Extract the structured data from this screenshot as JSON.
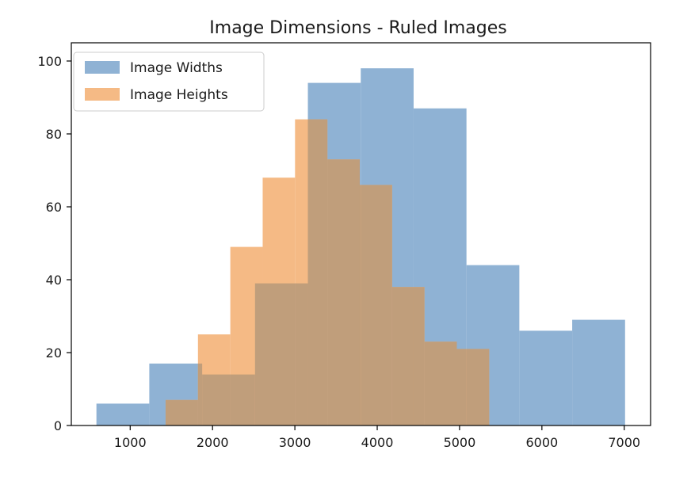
{
  "chart_data": {
    "type": "bar",
    "title": "Image Dimensions - Ruled Images",
    "xlabel": "",
    "ylabel": "",
    "xlim": [
      285,
      7320
    ],
    "ylim": [
      0,
      105
    ],
    "xticks": [
      1000,
      2000,
      3000,
      4000,
      5000,
      6000,
      7000
    ],
    "yticks": [
      0,
      20,
      40,
      60,
      80,
      100
    ],
    "legend_position": "top-left",
    "grid": false,
    "series": [
      {
        "name": "Image Widths",
        "color": "#8fb2d4",
        "bins": [
          {
            "x0": 590,
            "x1": 1232,
            "value": 6
          },
          {
            "x0": 1232,
            "x1": 1874,
            "value": 17
          },
          {
            "x0": 1874,
            "x1": 2516,
            "value": 14
          },
          {
            "x0": 2516,
            "x1": 3158,
            "value": 39
          },
          {
            "x0": 3158,
            "x1": 3800,
            "value": 94
          },
          {
            "x0": 3800,
            "x1": 4442,
            "value": 98
          },
          {
            "x0": 4442,
            "x1": 5084,
            "value": 87
          },
          {
            "x0": 5084,
            "x1": 5726,
            "value": 44
          },
          {
            "x0": 5726,
            "x1": 6368,
            "value": 26
          },
          {
            "x0": 6368,
            "x1": 7010,
            "value": 29
          }
        ]
      },
      {
        "name": "Image Heights",
        "color": "#f5ba85",
        "bins": [
          {
            "x0": 1430,
            "x1": 1823,
            "value": 7
          },
          {
            "x0": 1823,
            "x1": 2216,
            "value": 25
          },
          {
            "x0": 2216,
            "x1": 2609,
            "value": 49
          },
          {
            "x0": 2609,
            "x1": 3002,
            "value": 68
          },
          {
            "x0": 3002,
            "x1": 3395,
            "value": 84
          },
          {
            "x0": 3395,
            "x1": 3788,
            "value": 73
          },
          {
            "x0": 3788,
            "x1": 4181,
            "value": 66
          },
          {
            "x0": 4181,
            "x1": 4574,
            "value": 38
          },
          {
            "x0": 4574,
            "x1": 4967,
            "value": 23
          },
          {
            "x0": 4967,
            "x1": 5360,
            "value": 21
          }
        ]
      }
    ],
    "overlap_color": "#c09e7b"
  }
}
